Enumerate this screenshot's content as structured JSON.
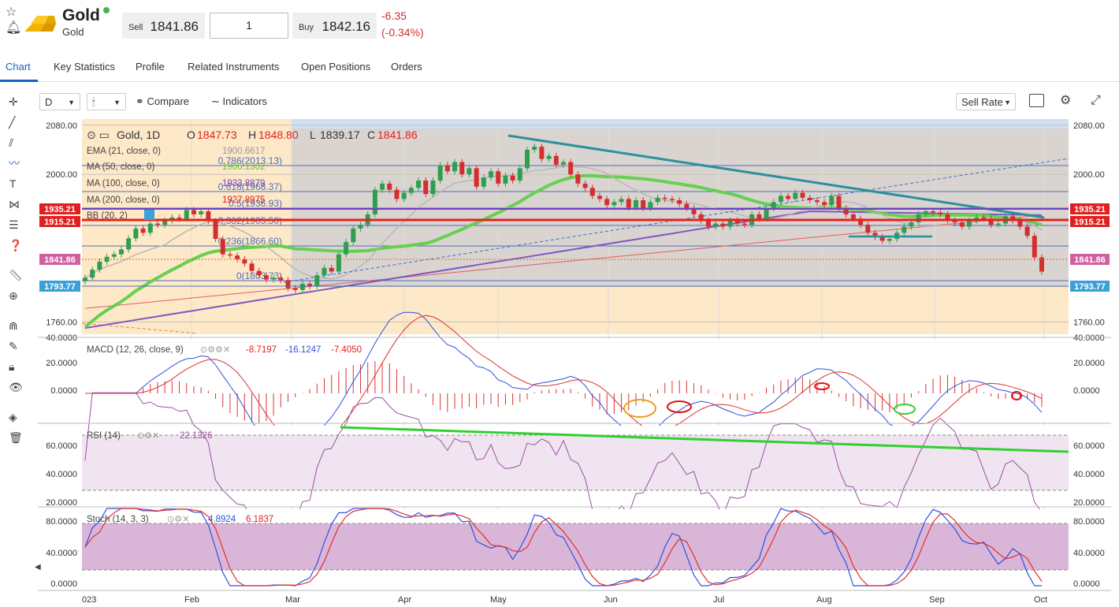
{
  "header": {
    "instrument_title": "Gold",
    "instrument_subtitle": "Gold",
    "sell_label": "Sell",
    "sell_price": "1841.86",
    "quantity": "1",
    "buy_label": "Buy",
    "buy_price": "1842.16",
    "change_abs": "-6.35",
    "change_pct": "(-0.34%)"
  },
  "tabs": [
    "Chart",
    "Key Statistics",
    "Profile",
    "Related Instruments",
    "Open Positions",
    "Orders"
  ],
  "toolbar": {
    "interval": "D",
    "compare_label": "Compare",
    "indicators_label": "Indicators",
    "price_mode": "Sell Rate"
  },
  "legend": {
    "symbol": "Gold, 1D",
    "o_label": "O",
    "o": "1847.73",
    "h_label": "H",
    "h": "1848.80",
    "l_label": "L",
    "l": "1839.17",
    "c_label": "C",
    "c": "1841.86",
    "ema": "EMA (21, close, 0)",
    "ema_val": "1900.6617",
    "ma50": "MA (50, close, 0)",
    "ma50_val": "1906.1302",
    "ma100": "MA (100, close, 0)",
    "ma100_val": "1933.8879",
    "ma200": "MA (200, close, 0)",
    "ma200_val": "1927.8975",
    "bb": "BB (20, 2)",
    "macd": "MACD (12, 26, close, 9)",
    "macd_v1": "-8.7197",
    "macd_v2": "-16.1247",
    "macd_v3": "-7.4050",
    "rsi": "RSI (14)",
    "rsi_val": "22.1326",
    "stoch": "Stoch (14, 3, 3)",
    "stoch_v1": "4.8924",
    "stoch_v2": "6.1837"
  },
  "fib_labels": [
    "0.786(2013.13)",
    "0.618(1968.37)",
    "0.5(1936.93)",
    "0.382(1905.50)",
    "0.236(1866.60)",
    "0(1803.73)"
  ],
  "price_axis": [
    "2080.00",
    "2000.00",
    "1760.00"
  ],
  "price_badges": {
    "red_upper": "1935.21",
    "red_lower": "1915.21",
    "current": "1841.86",
    "blue": "1793.77"
  },
  "macd_axis": [
    "40.0000",
    "20.0000",
    "0.0000"
  ],
  "rsi_axis": [
    "60.0000",
    "40.0000",
    "20.0000"
  ],
  "stoch_axis": [
    "80.0000",
    "40.0000",
    "0.0000"
  ],
  "time_axis": [
    "023",
    "Feb",
    "Mar",
    "Apr",
    "May",
    "Jun",
    "Jul",
    "Aug",
    "Sep",
    "Oct"
  ],
  "chart_data": {
    "type": "candlestick",
    "y_range": [
      1740,
      2090
    ],
    "closes": [
      1832,
      1845,
      1858,
      1866,
      1870,
      1878,
      1896,
      1912,
      1905,
      1920,
      1918,
      1925,
      1930,
      1928,
      1942,
      1935,
      1940,
      1924,
      1895,
      1870,
      1868,
      1862,
      1855,
      1843,
      1836,
      1829,
      1832,
      1828,
      1815,
      1812,
      1822,
      1818,
      1836,
      1848,
      1842,
      1870,
      1890,
      1912,
      1918,
      1935,
      1975,
      1985,
      1975,
      1960,
      1970,
      1978,
      1990,
      1968,
      1990,
      2015,
      2005,
      2020,
      2000,
      2010,
      1980,
      1995,
      2005,
      1985,
      1998,
      1990,
      2010,
      2040,
      2045,
      2025,
      2030,
      2016,
      2020,
      2000,
      1985,
      1978,
      1965,
      1960,
      1950,
      1955,
      1960,
      1946,
      1958,
      1945,
      1955,
      1962,
      1960,
      1958,
      1952,
      1945,
      1935,
      1925,
      1915,
      1920,
      1915,
      1925,
      1920,
      1918,
      1935,
      1928,
      1945,
      1955,
      1965,
      1960,
      1970,
      1962,
      1958,
      1955,
      1950,
      1965,
      1945,
      1935,
      1928,
      1918,
      1905,
      1898,
      1892,
      1895,
      1905,
      1915,
      1922,
      1935,
      1940,
      1938,
      1935,
      1925,
      1922,
      1915,
      1925,
      1930,
      1928,
      1918,
      1920,
      1932,
      1925,
      1915,
      1900,
      1865,
      1842
    ]
  }
}
